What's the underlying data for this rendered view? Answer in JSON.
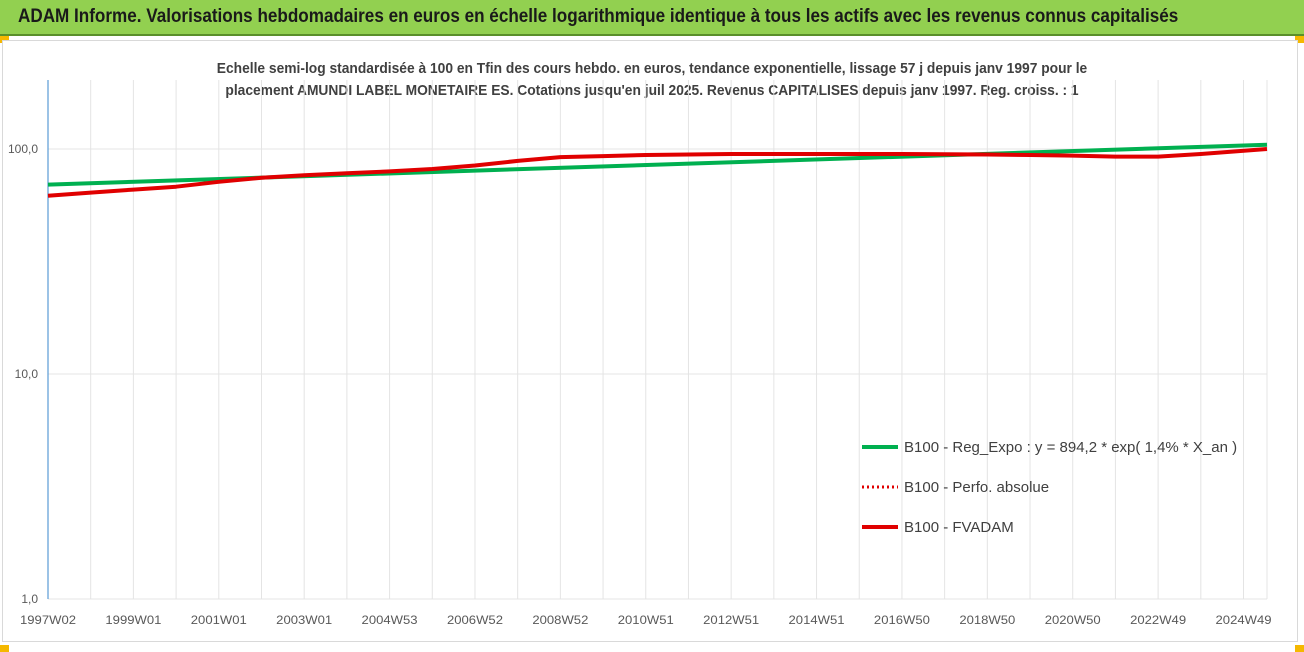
{
  "header": {
    "title": "ADAM Informe. Valorisations hebdomadaires en euros en échelle logarithmique identique à tous les actifs avec les revenus connus capitalisés",
    "background_color": "#92d050"
  },
  "chart_data": {
    "type": "line",
    "title_lines": [
      "Echelle semi-log standardisée à 100 en Tfin des cours hebdo. en euros, tendance exponentielle, lissage 57 j depuis janv 1997 pour le",
      "placement AMUNDI LABEL MONETAIRE ES. Cotations jusqu'en juil 2025. Revenus CAPITALISES depuis janv 1997. Reg. croiss. : 1"
    ],
    "y_scale": "log",
    "ylim": [
      1,
      200
    ],
    "y_ticks": [
      {
        "value": 1,
        "label": "1,0"
      },
      {
        "value": 10,
        "label": "10,0"
      },
      {
        "value": 100,
        "label": "100,0"
      }
    ],
    "xlim": [
      1997.0,
      2025.55
    ],
    "x_ticks": [
      {
        "value": 1997.0,
        "label": "1997W02"
      },
      {
        "value": 1999.0,
        "label": "1999W01"
      },
      {
        "value": 2001.0,
        "label": "2001W01"
      },
      {
        "value": 2003.0,
        "label": "2003W01"
      },
      {
        "value": 2005.0,
        "label": "2004W53"
      },
      {
        "value": 2007.0,
        "label": "2006W52"
      },
      {
        "value": 2009.0,
        "label": "2008W52"
      },
      {
        "value": 2011.0,
        "label": "2010W51"
      },
      {
        "value": 2013.0,
        "label": "2012W51"
      },
      {
        "value": 2015.0,
        "label": "2014W51"
      },
      {
        "value": 2017.0,
        "label": "2016W50"
      },
      {
        "value": 2019.0,
        "label": "2018W50"
      },
      {
        "value": 2021.0,
        "label": "2020W50"
      },
      {
        "value": 2023.0,
        "label": "2022W49"
      },
      {
        "value": 2025.0,
        "label": "2024W49"
      }
    ],
    "grid": "vertical",
    "legend_position": "right",
    "series": [
      {
        "name": "B100 - Reg_Expo : y = 894,2 * exp( 1,4% *  X_an )",
        "color": "#00b050",
        "style": "solid",
        "x": [
          1997.0,
          2025.55
        ],
        "y": [
          69.5,
          104.5
        ]
      },
      {
        "name": "B100 - Perfo. absolue",
        "color": "#e00000",
        "style": "dotted",
        "x": [],
        "y": []
      },
      {
        "name": "B100 - FVADAM",
        "color": "#e00000",
        "style": "solid",
        "x": [
          1997.0,
          1998.0,
          1999.0,
          2000.0,
          2001.0,
          2002.0,
          2003.0,
          2004.0,
          2005.0,
          2006.0,
          2007.0,
          2008.0,
          2009.0,
          2010.0,
          2011.0,
          2012.0,
          2013.0,
          2014.0,
          2015.0,
          2016.0,
          2017.0,
          2018.0,
          2019.0,
          2020.0,
          2021.0,
          2022.0,
          2023.0,
          2024.0,
          2025.55
        ],
        "y": [
          62.0,
          64.0,
          66.0,
          68.0,
          71.5,
          74.5,
          76.5,
          78.0,
          79.5,
          81.5,
          84.5,
          88.5,
          92.0,
          93.0,
          94.0,
          94.5,
          95.0,
          95.0,
          95.0,
          95.0,
          95.0,
          94.8,
          94.5,
          94.0,
          93.5,
          92.5,
          92.5,
          95.0,
          100.0
        ]
      }
    ]
  }
}
